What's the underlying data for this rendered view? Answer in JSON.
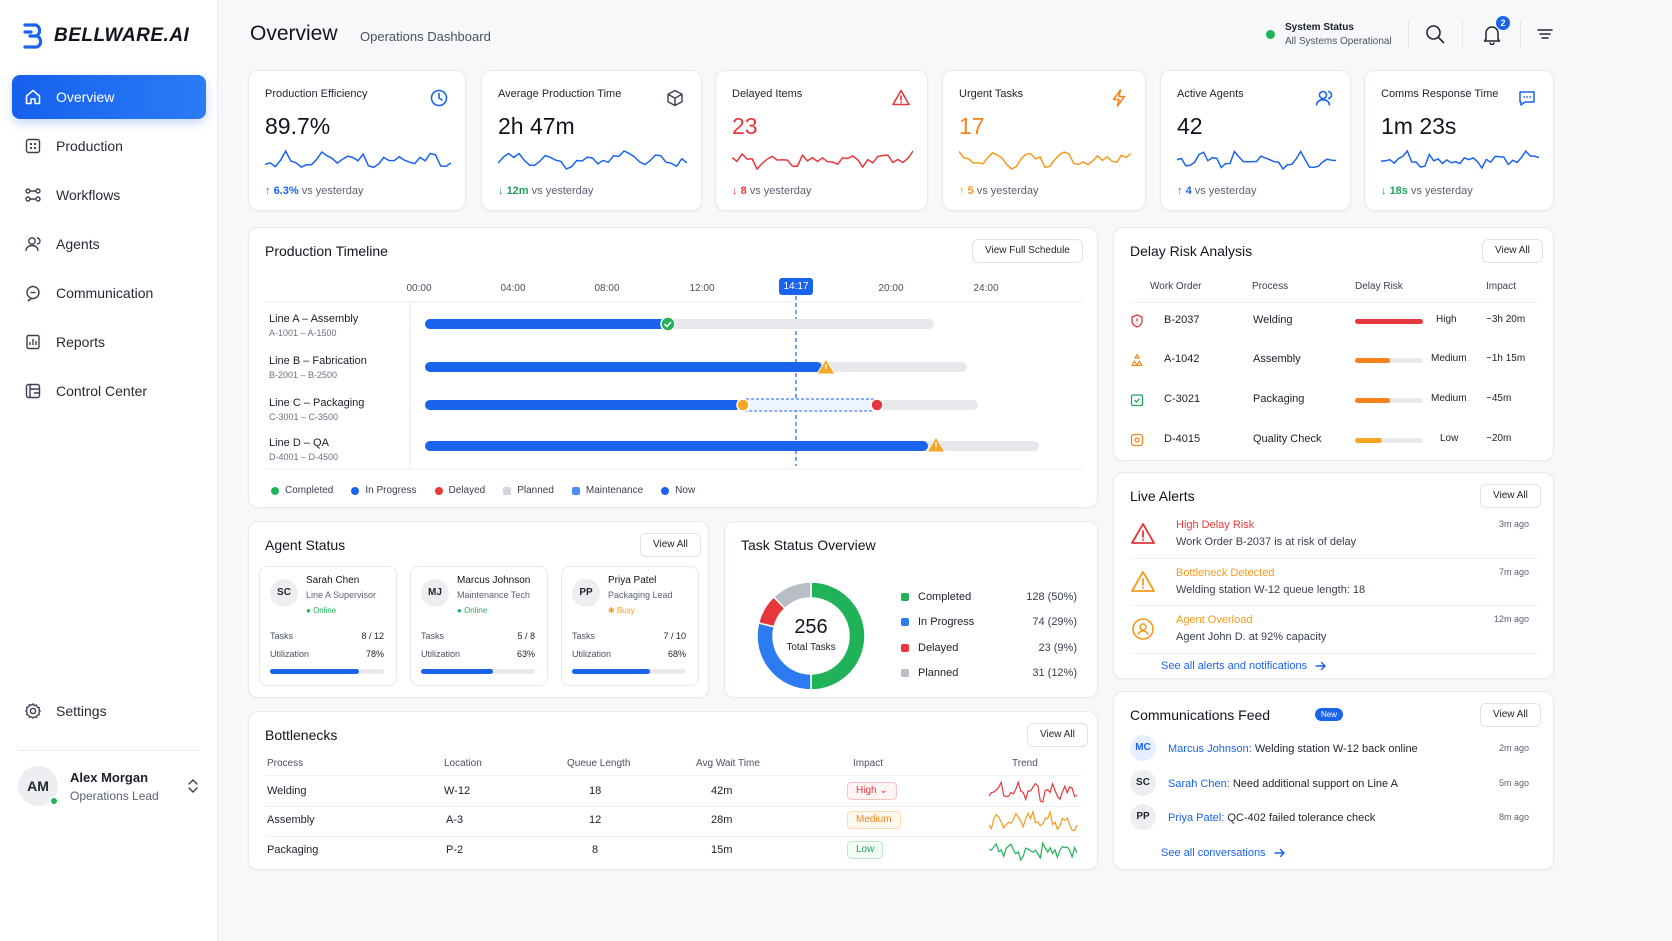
{
  "brand": {
    "name": "BELLWARE.AI"
  },
  "sidebar": {
    "items": [
      {
        "label": "Overview",
        "icon": "home-icon"
      },
      {
        "label": "Production",
        "icon": "production-icon"
      },
      {
        "label": "Workflows",
        "icon": "workflow-icon"
      },
      {
        "label": "Agents",
        "icon": "agents-icon"
      },
      {
        "label": "Communication",
        "icon": "communication-icon"
      },
      {
        "label": "Reports",
        "icon": "reports-icon"
      },
      {
        "label": "Control Center",
        "icon": "control-center-icon"
      }
    ],
    "settings_label": "Settings",
    "user": {
      "initials": "AM",
      "name": "Alex Morgan",
      "role": "Operations Lead"
    }
  },
  "header": {
    "title": "Overview",
    "subtitle": "Operations Dashboard",
    "status_title": "System Status",
    "status_text": "All Systems Operational",
    "notification_count": "2"
  },
  "kpis": [
    {
      "title": "Production Efficiency",
      "value": "89.7%",
      "delta": "6.3%",
      "delta_suffix": "vs yesterday",
      "color": "#1a63ec",
      "delta_color": "#1a63ec",
      "arrow": "↑"
    },
    {
      "title": "Average Production Time",
      "value": "2h 47m",
      "delta": "12m",
      "delta_suffix": "vs yesterday",
      "color": "#1a63ec",
      "delta_color": "#1fa35a",
      "arrow": "↓"
    },
    {
      "title": "Delayed Items",
      "value": "23",
      "delta": "8",
      "delta_suffix": "vs yesterday",
      "color": "#e8373a",
      "delta_color": "#e8373a",
      "arrow": "↓"
    },
    {
      "title": "Urgent Tasks",
      "value": "17",
      "delta": "5",
      "delta_suffix": "vs yesterday",
      "color": "#f59a1c",
      "delta_color": "#f59a1c",
      "arrow": "↑"
    },
    {
      "title": "Active Agents",
      "value": "42",
      "delta": "4",
      "delta_suffix": "vs yesterday",
      "color": "#1a63ec",
      "delta_color": "#1a63ec",
      "arrow": "↑"
    },
    {
      "title": "Comms Response Time",
      "value": "1m 23s",
      "delta": "18s",
      "delta_suffix": "vs yesterday",
      "color": "#1a63ec",
      "delta_color": "#1fa35a",
      "arrow": "↓"
    }
  ],
  "timeline": {
    "title": "Production Timeline",
    "button": "View Full Schedule",
    "ticks": [
      "00:00",
      "04:00",
      "08:00",
      "12:00",
      "20:00",
      "24:00"
    ],
    "now": "14:17",
    "lines": [
      {
        "name": "Line A – Assembly",
        "range": "A-1001 – A-1500"
      },
      {
        "name": "Line B – Fabrication",
        "range": "B-2001 – B-2500"
      },
      {
        "name": "Line C – Packaging",
        "range": "C-3001 – C-3500"
      },
      {
        "name": "Line D – QA",
        "range": "D-4001 – D-4500"
      }
    ],
    "legend": [
      "Completed",
      "In Progress",
      "Delayed",
      "Planned",
      "Maintenance",
      "Now"
    ]
  },
  "agent_status": {
    "title": "Agent Status",
    "button": "View All",
    "tasks_label": "Tasks",
    "util_label": "Utilization",
    "agents": [
      {
        "initials": "SC",
        "name": "Sarah Chen",
        "role": "Line A Supervisor",
        "state": "Online",
        "tasks": "8 / 12",
        "util": "78%",
        "util_value": 78,
        "busy": false
      },
      {
        "initials": "MJ",
        "name": "Marcus Johnson",
        "role": "Maintenance Tech",
        "state": "Online",
        "tasks": "5 / 8",
        "util": "63%",
        "util_value": 63,
        "busy": false
      },
      {
        "initials": "PP",
        "name": "Priya Patel",
        "role": "Packaging Lead",
        "state": "Busy",
        "tasks": "7 / 10",
        "util": "68%",
        "util_value": 68,
        "busy": true
      }
    ]
  },
  "task_status": {
    "title": "Task Status Overview",
    "total": "256",
    "total_label": "Total Tasks",
    "items": [
      {
        "label": "Completed",
        "value": "128 (50%)",
        "count": 128,
        "color": "#1fb259"
      },
      {
        "label": "In Progress",
        "value": "74 (29%)",
        "count": 74,
        "color": "#2c7bf0"
      },
      {
        "label": "Delayed",
        "value": "23 (9%)",
        "count": 23,
        "color": "#e8373a"
      },
      {
        "label": "Planned",
        "value": "31 (12%)",
        "count": 31,
        "color": "#b9bdc6"
      }
    ]
  },
  "bottlenecks": {
    "title": "Bottlenecks",
    "button": "View All",
    "headers": [
      "Process",
      "Location",
      "Queue Length",
      "Avg Wait Time",
      "Impact",
      "Trend"
    ],
    "rows": [
      {
        "process": "Welding",
        "location": "W-12",
        "queue": "18",
        "wait": "42m",
        "impact": "High",
        "trend_color": "#e8373a"
      },
      {
        "process": "Assembly",
        "location": "A-3",
        "queue": "12",
        "wait": "28m",
        "impact": "Medium",
        "trend_color": "#f59a1c"
      },
      {
        "process": "Packaging",
        "location": "P-2",
        "queue": "8",
        "wait": "15m",
        "impact": "Low",
        "trend_color": "#1fb259"
      }
    ]
  },
  "delay_risk": {
    "title": "Delay Risk Analysis",
    "button": "View All",
    "headers": [
      "Work Order",
      "Process",
      "Delay Risk",
      "Impact"
    ],
    "rows": [
      {
        "order": "B-2037",
        "process": "Welding",
        "risk": "High",
        "risk_value": 100,
        "impact": "~3h 20m",
        "color": "#e8373a"
      },
      {
        "order": "A-1042",
        "process": "Assembly",
        "risk": "Medium",
        "risk_value": 52,
        "impact": "~1h 15m",
        "color": "#f5831c"
      },
      {
        "order": "C-3021",
        "process": "Packaging",
        "risk": "Medium",
        "risk_value": 52,
        "impact": "~45m",
        "color": "#f5831c"
      },
      {
        "order": "D-4015",
        "process": "Quality Check",
        "risk": "Low",
        "risk_value": 40,
        "impact": "~20m",
        "color": "#f5a623"
      }
    ]
  },
  "alerts": {
    "title": "Live Alerts",
    "button": "View All",
    "items": [
      {
        "title": "High Delay Risk",
        "desc": "Work Order B-2037 is at risk of delay",
        "time": "3m ago",
        "color": "#e8373a"
      },
      {
        "title": "Bottleneck Detected",
        "desc": "Welding station W-12 queue length: 18",
        "time": "7m ago",
        "color": "#f59a1c"
      },
      {
        "title": "Agent Overload",
        "desc": "Agent John D. at 92% capacity",
        "time": "12m ago",
        "color": "#f59a1c"
      }
    ],
    "link": "See all alerts and notifications"
  },
  "comms": {
    "title": "Communications Feed",
    "button": "View All",
    "new_label": "New",
    "items": [
      {
        "initials": "MC",
        "name": "Marcus Johnson:",
        "text": "Welding station W-12 back online",
        "time": "2m ago"
      },
      {
        "initials": "SC",
        "name": "Sarah Chen:",
        "text": "Need additional support on Line A",
        "time": "5m ago"
      },
      {
        "initials": "PP",
        "name": "Priya Patel:",
        "text": "QC-402 failed tolerance check",
        "time": "8m ago"
      }
    ],
    "link": "See all conversations"
  }
}
